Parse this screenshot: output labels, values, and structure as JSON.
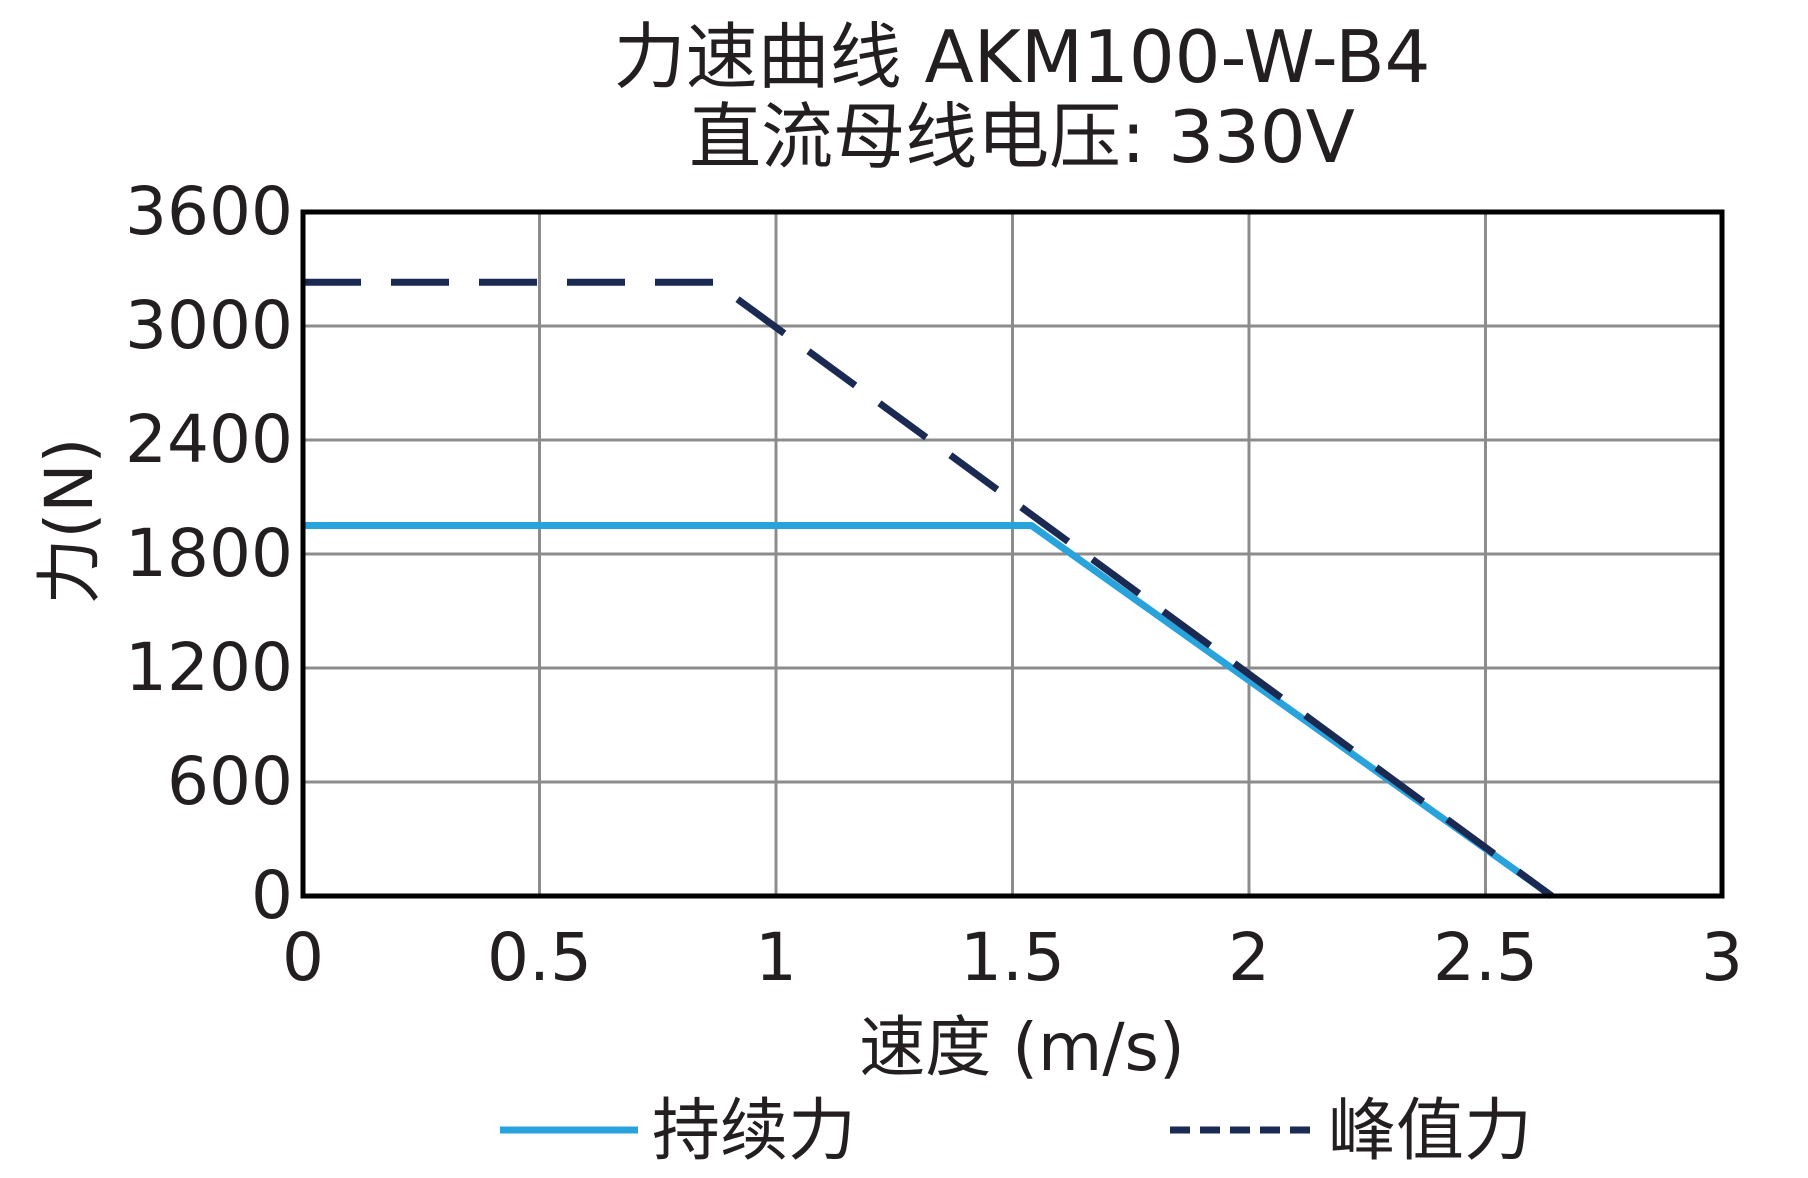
{
  "chart_data": {
    "type": "line",
    "title": "力速曲线 AKM100-W-B4",
    "subtitle": "直流母线电压: 330V",
    "xlabel": "速度 (m/s)",
    "ylabel": "力(N)",
    "xlim": [
      0,
      3
    ],
    "ylim": [
      0,
      3600
    ],
    "x_ticks": [
      "0",
      "0.5",
      "1",
      "1.5",
      "2",
      "2.5",
      "3"
    ],
    "y_ticks": [
      "0",
      "600",
      "1200",
      "1800",
      "2400",
      "3000",
      "3600"
    ],
    "x_tick_values": [
      0,
      0.5,
      1,
      1.5,
      2,
      2.5,
      3
    ],
    "y_tick_values": [
      0,
      600,
      1200,
      1800,
      2400,
      3000,
      3600
    ],
    "grid": true,
    "legend_position": "bottom",
    "series": [
      {
        "name": "持续力",
        "style": "solid",
        "color": "#29a3dc",
        "x": [
          0,
          1.54,
          2.64
        ],
        "y": [
          1950,
          1950,
          0
        ]
      },
      {
        "name": "峰值力",
        "style": "dashed",
        "color": "#1a2a52",
        "x": [
          0,
          0.87,
          2.64
        ],
        "y": [
          3230,
          3230,
          0
        ]
      }
    ]
  }
}
